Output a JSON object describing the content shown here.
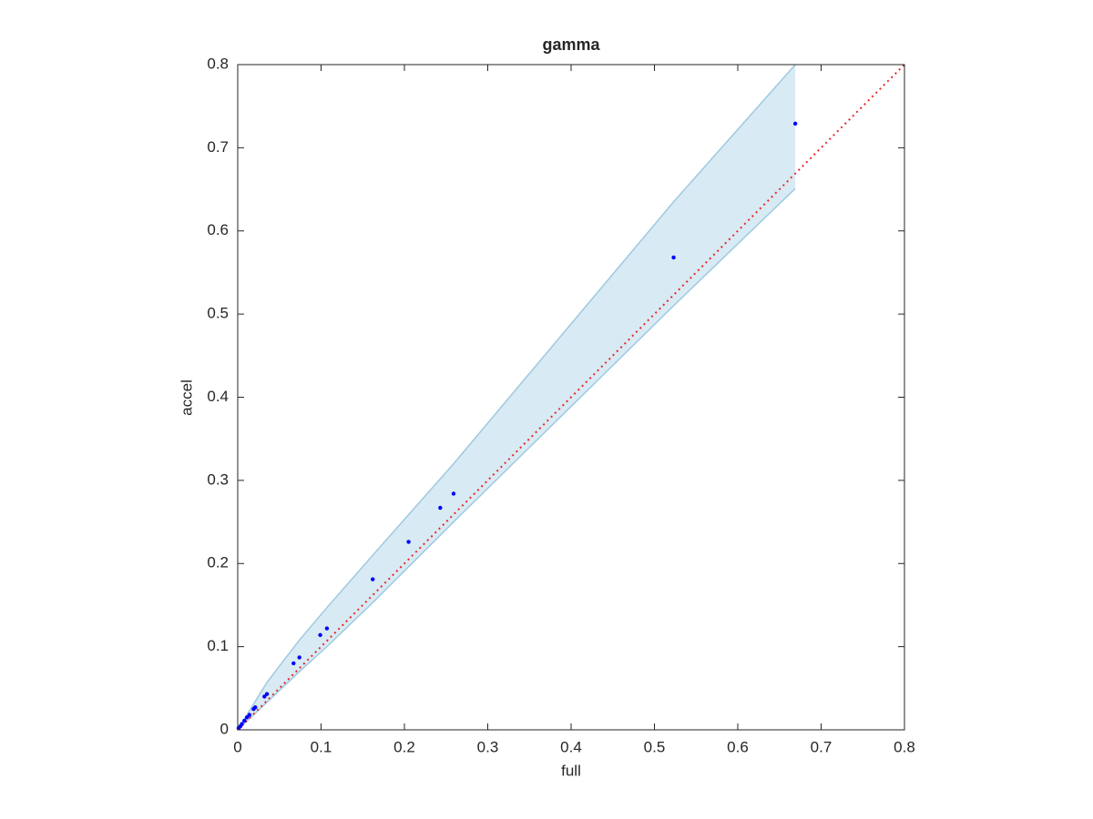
{
  "chart_data": {
    "type": "scatter",
    "title": "gamma",
    "xlabel": "full",
    "ylabel": "accel",
    "xlim": [
      0,
      0.8
    ],
    "ylim": [
      0,
      0.8
    ],
    "xticks": [
      0,
      0.1,
      0.2,
      0.3,
      0.4,
      0.5,
      0.6,
      0.7,
      0.8
    ],
    "yticks": [
      0,
      0.1,
      0.2,
      0.3,
      0.4,
      0.5,
      0.6,
      0.7,
      0.8
    ],
    "band": {
      "color": "#9ecae1",
      "x": [
        0,
        0.035,
        0.074,
        0.107,
        0.162,
        0.259,
        0.523,
        0.669
      ],
      "upper": [
        0,
        0.057,
        0.108,
        0.147,
        0.21,
        0.32,
        0.635,
        0.8
      ],
      "lower": [
        0,
        0.033,
        0.07,
        0.1,
        0.153,
        0.25,
        0.51,
        0.651
      ]
    },
    "reference_line": {
      "color": "#e8282a",
      "x": [
        0,
        0.8
      ],
      "y": [
        0,
        0.8
      ]
    },
    "points": {
      "color": "#0000ff",
      "x": [
        0.669,
        0.523,
        0.259,
        0.243,
        0.205,
        0.162,
        0.107,
        0.099,
        0.074,
        0.067,
        0.035,
        0.032,
        0.021,
        0.019,
        0.014,
        0.011,
        0.008,
        0.005,
        0.003,
        0.001
      ],
      "y": [
        0.729,
        0.568,
        0.284,
        0.267,
        0.226,
        0.181,
        0.122,
        0.114,
        0.087,
        0.08,
        0.043,
        0.04,
        0.027,
        0.025,
        0.018,
        0.015,
        0.011,
        0.007,
        0.004,
        0.002
      ]
    }
  }
}
